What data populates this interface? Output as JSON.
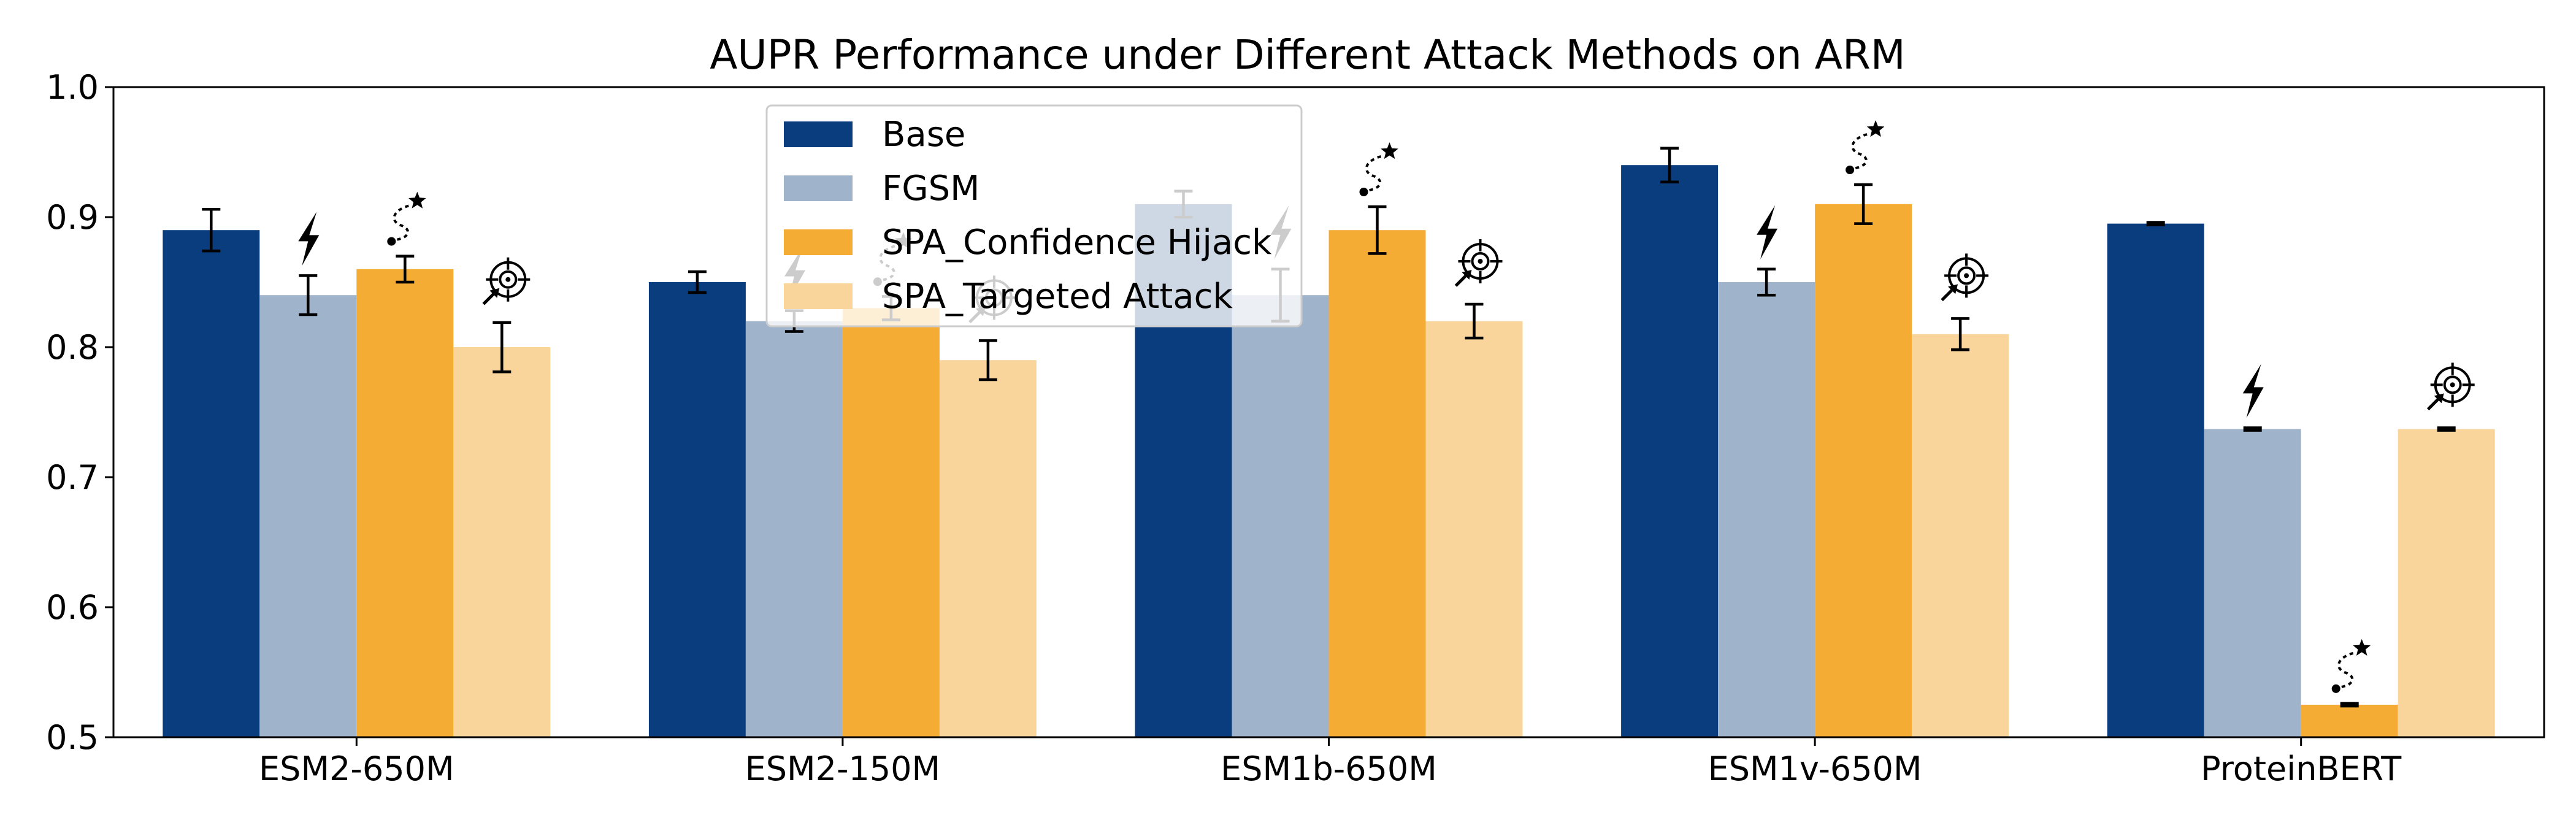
{
  "chart_data": {
    "type": "bar",
    "title": "AUPR Performance under Different Attack Methods on ARM",
    "xlabel": "",
    "ylabel": "",
    "ylim": [
      0.5,
      1.0
    ],
    "yticks": [
      "0.5",
      "0.6",
      "0.7",
      "0.8",
      "0.9",
      "1.0"
    ],
    "categories": [
      "ESM2-650M",
      "ESM2-150M",
      "ESM1b-650M",
      "ESM1v-650M",
      "ProteinBERT"
    ],
    "series": [
      {
        "name": "Base",
        "color": "#0a3d7e",
        "icon": "none",
        "values": [
          0.89,
          0.85,
          0.91,
          0.94,
          0.895
        ],
        "errors": [
          0.016,
          0.008,
          0.01,
          0.013,
          0.001
        ]
      },
      {
        "name": "FGSM",
        "color": "#9fb3cb",
        "icon": "lightning-bolt-icon",
        "values": [
          0.84,
          0.82,
          0.84,
          0.85,
          0.737
        ],
        "errors": [
          0.015,
          0.008,
          0.02,
          0.01,
          0.001
        ]
      },
      {
        "name": "SPA_Confidence Hijack",
        "color": "#f5ac35",
        "icon": "dotted-path-star-icon",
        "values": [
          0.86,
          0.83,
          0.89,
          0.91,
          0.525
        ],
        "errors": [
          0.01,
          0.009,
          0.018,
          0.015,
          0.001
        ]
      },
      {
        "name": "SPA_Targeted Attack",
        "color": "#f9d59b",
        "icon": "crosshair-target-icon",
        "values": [
          0.8,
          0.79,
          0.82,
          0.81,
          0.737
        ],
        "errors": [
          0.019,
          0.015,
          0.013,
          0.012,
          0.001
        ]
      }
    ],
    "legend_position": "upper-center",
    "grid": false
  }
}
